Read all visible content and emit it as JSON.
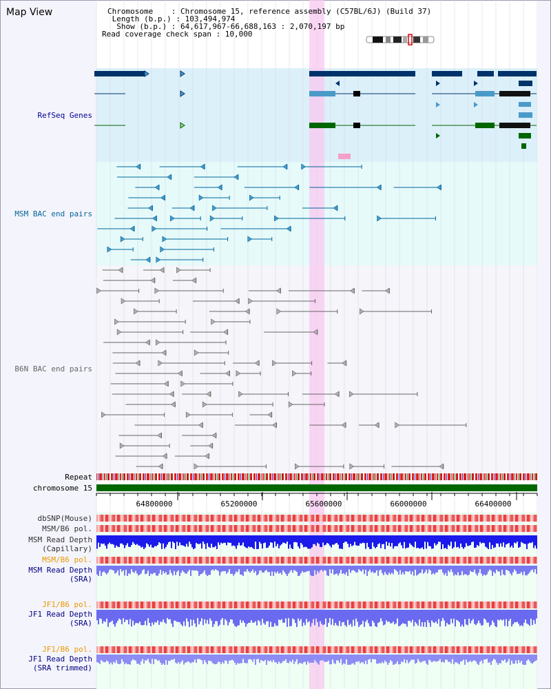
{
  "header": {
    "title": "Map View",
    "info_lines": [
      "Chromosome    : Chromosome 15, reference assembly (C57BL/6J) (Build 37)",
      " Length (b.p.) : 103,494,974",
      "  Show (b.p.) : 64,617,967-66,688,163 : 2,070,197 bp",
      "Read coverage check span : 10,000"
    ]
  },
  "tracks": {
    "refseq": "RefSeq Genes",
    "msm_bac": "MSM BAC end pairs",
    "b6n_bac": "B6N BAC end pairs",
    "repeat": "Repeat",
    "chromosome": "chromosome 15",
    "dbsnp": "dbSNP(Mouse)",
    "msm_b6_pol_1": "MSM/B6 pol.",
    "msm_read_depth_cap_1": "MSM Read Depth",
    "msm_read_depth_cap_2": "(Capillary)",
    "msm_b6_pol_2": "MSM/B6 pol.",
    "msm_read_depth_sra_1": "MSM Read Depth",
    "msm_read_depth_sra_2": "(SRA)",
    "jf1_b6_pol_1": "JF1/B6 pol.",
    "jf1_read_depth_sra_1": "JF1 Read Depth",
    "jf1_read_depth_sra_2": "(SRA)",
    "jf1_b6_pol_2": "JF1/B6 pol.",
    "jf1_read_depth_trim_1": "JF1 Read Depth",
    "jf1_read_depth_trim_2": "(SRA trimmed)"
  },
  "axis": {
    "ticks": [
      "64800000",
      "65200000",
      "65600000",
      "66000000",
      "66400000"
    ]
  },
  "colors": {
    "refseq_label": "#000099",
    "msm_label": "#006699",
    "b6n_label": "#666666",
    "orange_label": "#e89a00",
    "navy_label": "#000080",
    "refseq_gene": "#00336a",
    "refseq_mid": "#4a9ac8",
    "refseq_green": "#006600",
    "highlight": "#f8c8f0",
    "chromosome_bar": "#006600"
  }
}
